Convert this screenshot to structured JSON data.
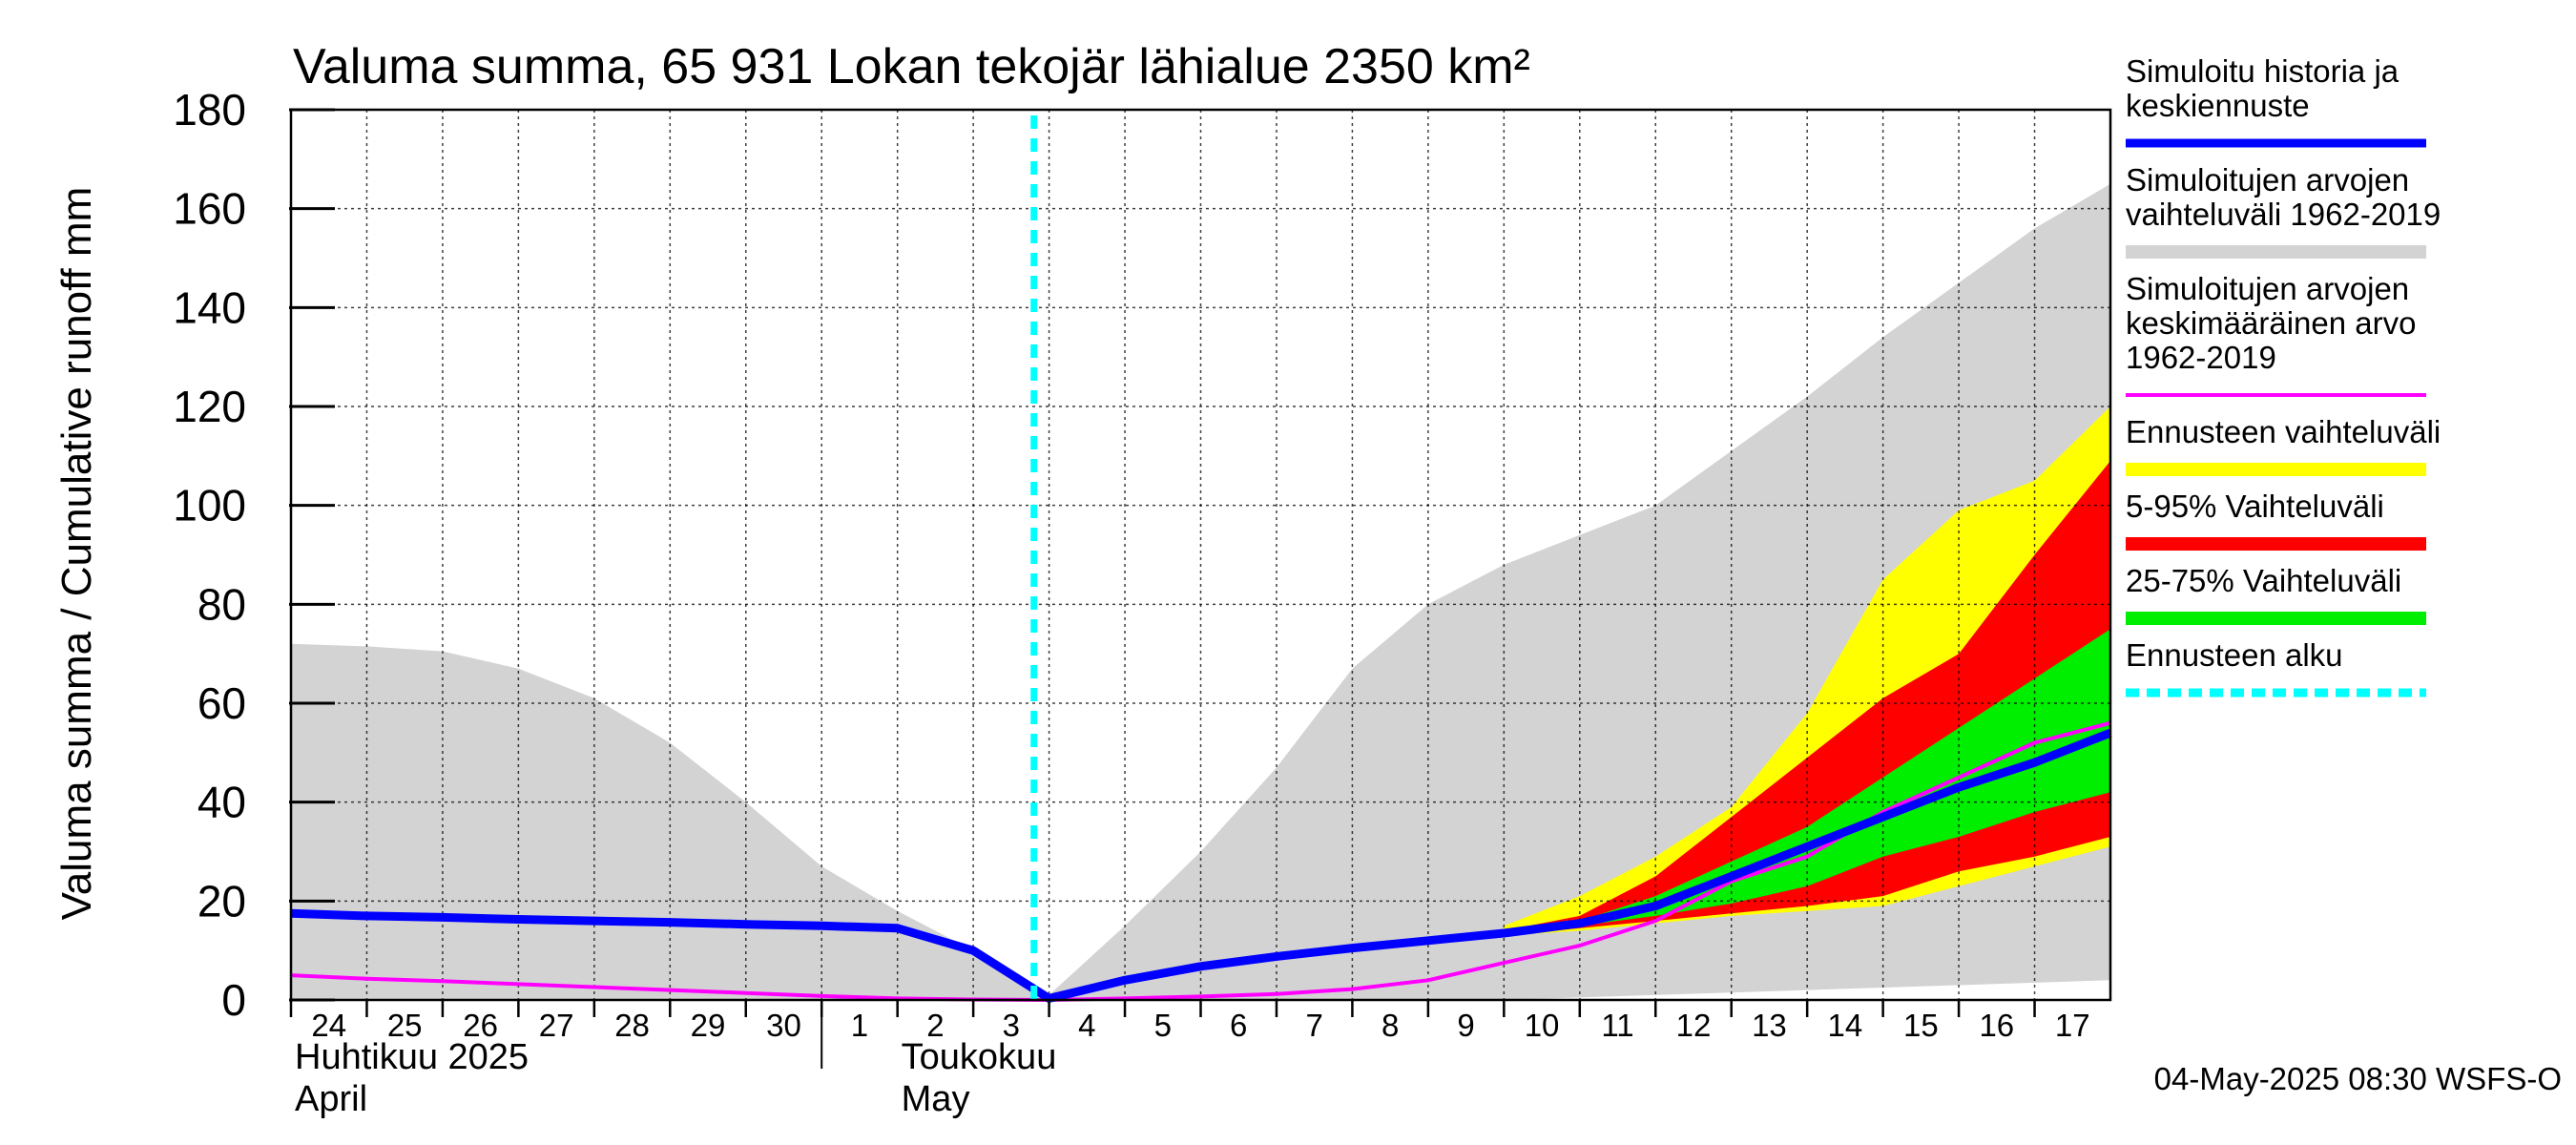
{
  "chart_data": {
    "type": "area",
    "title": "Valuma summa, 65 931 Lokan tekojär lähialue 2350 km²",
    "ylabel": "Valuma summa / Cumulative runoff    mm",
    "ylim": [
      0,
      180
    ],
    "yticks": [
      0,
      20,
      40,
      60,
      80,
      100,
      120,
      140,
      160,
      180
    ],
    "grid": true,
    "legend_position": "right",
    "x_start": "2025-04-24",
    "x_end": "2025-05-18",
    "x_tick_labels": [
      "24",
      "25",
      "26",
      "27",
      "28",
      "29",
      "30",
      "1",
      "2",
      "3",
      "4",
      "5",
      "6",
      "7",
      "8",
      "9",
      "10",
      "11",
      "12",
      "13",
      "14",
      "15",
      "16",
      "17"
    ],
    "x_tick_dates": [
      "2025-04-24",
      "2025-04-25",
      "2025-04-26",
      "2025-04-27",
      "2025-04-28",
      "2025-04-29",
      "2025-04-30",
      "2025-05-01",
      "2025-05-02",
      "2025-05-03",
      "2025-05-04",
      "2025-05-05",
      "2025-05-06",
      "2025-05-07",
      "2025-05-08",
      "2025-05-09",
      "2025-05-10",
      "2025-05-11",
      "2025-05-12",
      "2025-05-13",
      "2025-05-14",
      "2025-05-15",
      "2025-05-16",
      "2025-05-17"
    ],
    "month_labels": [
      {
        "fi": "Huhtikuu  2025",
        "en": "April",
        "date": "2025-04-24"
      },
      {
        "fi": "Toukokuu",
        "en": "May",
        "date": "2025-05-02"
      }
    ],
    "month_separator_date": "2025-05-01",
    "forecast_start": "2025-05-04",
    "timestamp": "04-May-2025 08:30 WSFS-O",
    "colors": {
      "history": "#0000ff",
      "range": "#d3d3d3",
      "mean": "#ff00ff",
      "forecast_range": "#ffff00",
      "p5_95": "#ff0000",
      "p25_75": "#00ee00",
      "forecast_start": "#00ffff"
    },
    "legend": [
      {
        "label": "Simuloitu historia ja\nkeskiennuste",
        "color": "#0000ff",
        "style": "line"
      },
      {
        "label": "Simuloitujen arvojen\nvaihteluväli 1962-2019",
        "color": "#d3d3d3",
        "style": "band"
      },
      {
        "label": "Simuloitujen arvojen\nkeskimääräinen arvo\n   1962-2019",
        "color": "#ff00ff",
        "style": "thin"
      },
      {
        "label": "Ennusteen vaihteluväli",
        "color": "#ffff00",
        "style": "band"
      },
      {
        "label": "5-95% Vaihteluväli",
        "color": "#ff0000",
        "style": "band"
      },
      {
        "label": "25-75% Vaihteluväli",
        "color": "#00ee00",
        "style": "band"
      },
      {
        "label": "Ennusteen alku",
        "color": "#00ffff",
        "style": "dashed"
      }
    ],
    "series": [
      {
        "name": "Simuloitujen arvojen vaihteluväli 1962-2019",
        "kind": "band",
        "x": [
          "2025-04-24",
          "2025-04-25",
          "2025-04-26",
          "2025-04-27",
          "2025-04-28",
          "2025-04-29",
          "2025-04-30",
          "2025-05-01",
          "2025-05-02",
          "2025-05-03",
          "2025-05-04",
          "2025-05-05",
          "2025-05-06",
          "2025-05-07",
          "2025-05-08",
          "2025-05-09",
          "2025-05-10",
          "2025-05-11",
          "2025-05-12",
          "2025-05-13",
          "2025-05-14",
          "2025-05-15",
          "2025-05-16",
          "2025-05-17",
          "2025-05-18"
        ],
        "upper": [
          72,
          71.5,
          70.5,
          67,
          61,
          52,
          40,
          27,
          18,
          10,
          1,
          15,
          30,
          47,
          67,
          80,
          88,
          94,
          100,
          111,
          122,
          134,
          145,
          156,
          165
        ],
        "lower": [
          0,
          0,
          0,
          0,
          0,
          0,
          0,
          0,
          0,
          0,
          0,
          0,
          0,
          0,
          0,
          0,
          0,
          0.5,
          1,
          1.5,
          2,
          2.5,
          3,
          3.5,
          4
        ]
      },
      {
        "name": "Ennusteen vaihteluväli",
        "kind": "band",
        "x": [
          "2025-05-10",
          "2025-05-11",
          "2025-05-12",
          "2025-05-13",
          "2025-05-14",
          "2025-05-15",
          "2025-05-16",
          "2025-05-17",
          "2025-05-18"
        ],
        "upper": [
          15,
          21,
          29,
          39,
          58,
          85,
          99,
          105,
          120
        ],
        "lower": [
          13,
          14,
          15.5,
          17,
          18,
          19,
          23,
          27,
          31
        ]
      },
      {
        "name": "5-95% Vaihteluväli",
        "kind": "band",
        "x": [
          "2025-05-10",
          "2025-05-11",
          "2025-05-12",
          "2025-05-13",
          "2025-05-14",
          "2025-05-15",
          "2025-05-16",
          "2025-05-17",
          "2025-05-18"
        ],
        "upper": [
          14,
          17,
          25,
          37,
          49,
          61,
          70,
          90,
          109
        ],
        "lower": [
          13,
          14.5,
          16,
          17.5,
          19,
          21,
          26,
          29,
          33
        ]
      },
      {
        "name": "25-75% Vaihteluväli",
        "kind": "band",
        "x": [
          "2025-05-10",
          "2025-05-11",
          "2025-05-12",
          "2025-05-13",
          "2025-05-14",
          "2025-05-15",
          "2025-05-16",
          "2025-05-17",
          "2025-05-18"
        ],
        "upper": [
          14,
          16,
          21,
          28,
          35,
          45,
          55,
          65,
          75
        ],
        "lower": [
          13.5,
          15,
          17,
          19.5,
          23,
          29,
          33,
          38,
          42
        ]
      },
      {
        "name": "Simuloitujen arvojen keskimääräinen arvo 1962-2019",
        "kind": "line",
        "x": [
          "2025-04-24",
          "2025-04-25",
          "2025-04-26",
          "2025-04-27",
          "2025-04-28",
          "2025-04-29",
          "2025-04-30",
          "2025-05-01",
          "2025-05-02",
          "2025-05-03",
          "2025-05-04",
          "2025-05-05",
          "2025-05-06",
          "2025-05-07",
          "2025-05-08",
          "2025-05-09",
          "2025-05-10",
          "2025-05-11",
          "2025-05-12",
          "2025-05-13",
          "2025-05-14",
          "2025-05-15",
          "2025-05-16",
          "2025-05-17",
          "2025-05-18"
        ],
        "y": [
          5,
          4.3,
          3.8,
          3.2,
          2.6,
          2.0,
          1.4,
          0.8,
          0.3,
          0.1,
          0,
          0.3,
          0.7,
          1.2,
          2.2,
          4,
          7.5,
          11,
          16,
          24,
          29,
          38,
          45,
          52,
          56
        ]
      },
      {
        "name": "Simuloitu historia ja keskiennuste",
        "kind": "line",
        "x": [
          "2025-04-24",
          "2025-04-25",
          "2025-04-26",
          "2025-04-27",
          "2025-04-28",
          "2025-04-29",
          "2025-04-30",
          "2025-05-01",
          "2025-05-02",
          "2025-05-03",
          "2025-05-04",
          "2025-05-05",
          "2025-05-06",
          "2025-05-07",
          "2025-05-08",
          "2025-05-09",
          "2025-05-10",
          "2025-05-11",
          "2025-05-12",
          "2025-05-13",
          "2025-05-14",
          "2025-05-15",
          "2025-05-16",
          "2025-05-17",
          "2025-05-18"
        ],
        "y": [
          17.5,
          17,
          16.7,
          16.3,
          16,
          15.7,
          15.3,
          15,
          14.5,
          10,
          0.3,
          4,
          6.8,
          8.8,
          10.5,
          12,
          13.5,
          15.5,
          19,
          25,
          31,
          37,
          43,
          48,
          54
        ]
      }
    ]
  }
}
